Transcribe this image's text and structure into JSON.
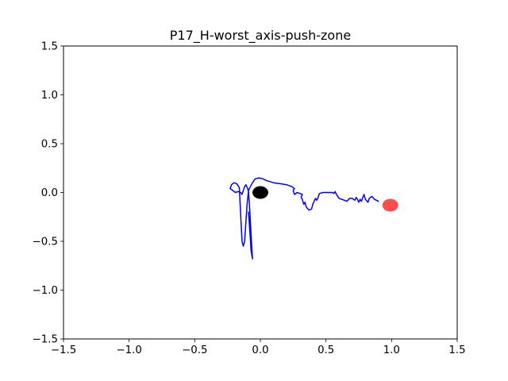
{
  "chart_data": {
    "type": "line",
    "title": "P17_H-worst_axis-push-zone",
    "xlabel": "",
    "ylabel": "",
    "xlim": [
      -1.5,
      1.5
    ],
    "ylim": [
      -1.5,
      1.5
    ],
    "xticks": [
      -1.5,
      -1.0,
      -0.5,
      0.0,
      0.5,
      1.0,
      1.5
    ],
    "yticks": [
      -1.5,
      -1.0,
      -0.5,
      0.0,
      0.5,
      1.0,
      1.5
    ],
    "xtick_labels": [
      "−1.5",
      "−1.0",
      "−0.5",
      "0.0",
      "0.5",
      "1.0",
      "1.5"
    ],
    "ytick_labels": [
      "−1.5",
      "−1.0",
      "−0.5",
      "0.0",
      "0.5",
      "1.0",
      "1.5"
    ],
    "grid": false,
    "series": [
      {
        "color": "#0000ff",
        "x": [
          0.9,
          0.87,
          0.85,
          0.83,
          0.82,
          0.8,
          0.79,
          0.78,
          0.77,
          0.76,
          0.75,
          0.74,
          0.73,
          0.72,
          0.7,
          0.68,
          0.66,
          0.64,
          0.62,
          0.6,
          0.58,
          0.57,
          0.56,
          0.55,
          0.52,
          0.48,
          0.45,
          0.44,
          0.43,
          0.42,
          0.41,
          0.4,
          0.39,
          0.37,
          0.35,
          0.34,
          0.33,
          0.32,
          0.31,
          0.32,
          0.3,
          0.28,
          0.26,
          0.25,
          0.26,
          0.24,
          0.2,
          0.15,
          0.1,
          0.05,
          0.02,
          -0.01,
          -0.04,
          -0.06,
          -0.08,
          -0.09,
          -0.1,
          -0.11,
          -0.12,
          -0.13,
          -0.14,
          -0.16,
          -0.18,
          -0.2,
          -0.22,
          -0.23,
          -0.21,
          -0.19,
          -0.17,
          -0.15,
          -0.14,
          -0.13,
          -0.12,
          -0.11,
          -0.1,
          -0.09,
          -0.08,
          -0.07,
          -0.06,
          -0.07,
          -0.08,
          -0.09
        ],
        "y": [
          -0.09,
          -0.07,
          -0.04,
          -0.06,
          -0.1,
          -0.07,
          -0.02,
          -0.05,
          -0.09,
          -0.07,
          -0.1,
          -0.07,
          -0.05,
          -0.08,
          -0.06,
          -0.06,
          -0.09,
          -0.08,
          -0.07,
          -0.06,
          -0.02,
          0.01,
          -0.01,
          0.0,
          0.0,
          0.0,
          -0.01,
          -0.05,
          -0.08,
          -0.06,
          -0.09,
          -0.12,
          -0.17,
          -0.18,
          -0.15,
          -0.1,
          -0.12,
          -0.07,
          -0.05,
          -0.02,
          -0.01,
          0.0,
          -0.02,
          0.02,
          0.04,
          0.06,
          0.08,
          0.09,
          0.1,
          0.12,
          0.14,
          0.15,
          0.14,
          0.1,
          0.05,
          0.02,
          -0.1,
          -0.3,
          -0.5,
          -0.55,
          -0.5,
          0.05,
          0.09,
          0.1,
          0.08,
          0.04,
          0.02,
          0.0,
          0.01,
          0.0,
          -0.02,
          0.02,
          0.06,
          0.08,
          0.05,
          0.01,
          -0.2,
          -0.45,
          -0.68,
          -0.6,
          -0.4,
          -0.2
        ]
      }
    ],
    "markers": [
      {
        "x": 0.0,
        "y": 0.0,
        "color": "#000000",
        "alpha": 1.0
      },
      {
        "x": 0.99,
        "y": -0.13,
        "color": "#ff0000",
        "alpha": 0.7
      }
    ]
  }
}
